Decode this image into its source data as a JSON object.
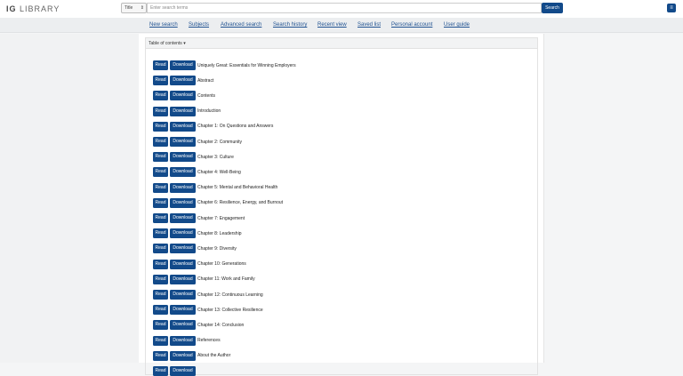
{
  "header": {
    "logo_bold": "IG",
    "logo_rest": "LIBRARY",
    "search_type": "Title",
    "search_placeholder": "Enter search terms",
    "search_button": "Search",
    "menu_icon": "hamburger-menu-icon"
  },
  "nav": [
    "New search",
    "Subjects",
    "Advanced search",
    "Search history",
    "Recent view",
    "Saved list",
    "Personal account",
    "User guide"
  ],
  "toc": {
    "title": "Table of contents ▾",
    "read_label": "Read",
    "download_label": "Download",
    "items": [
      "Uniquely Great: Essentials for Winning Employers",
      "Abstract",
      "Contents",
      "Introduction",
      "Chapter 1: On Questions and Answers",
      "Chapter 2: Community",
      "Chapter 3: Culture",
      "Chapter 4: Well-Being",
      "Chapter 5: Mental and Behavioral Health",
      "Chapter 6: Resilience, Energy, and Burnout",
      "Chapter 7: Engagement",
      "Chapter 8: Leadership",
      "Chapter 9: Diversity",
      "Chapter 10: Generations",
      "Chapter 11: Work and Family",
      "Chapter 12: Continuous Learning",
      "Chapter 13: Collective Resilience",
      "Chapter 14: Conclusion",
      "References",
      "About the Author",
      ""
    ]
  },
  "colors": {
    "primary": "#124a8a",
    "link": "#1f5190"
  }
}
